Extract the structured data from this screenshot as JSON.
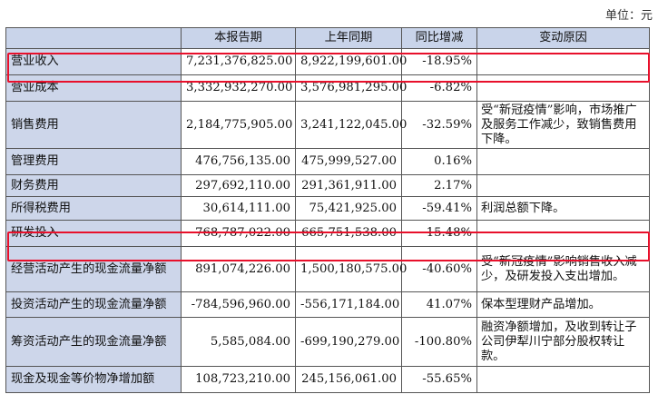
{
  "unit_label": "单位：元",
  "columns": [
    "",
    "本报告期",
    "上年同期",
    "同比增减",
    "变动原因"
  ],
  "rows": [
    {
      "item": "营业收入",
      "current": "7,231,376,825.00",
      "previous": "8,922,199,601.00",
      "change": "-18.95%",
      "reason": ""
    },
    {
      "item": "营业成本",
      "current": "3,332,932,270.00",
      "previous": "3,576,981,295.00",
      "change": "-6.82%",
      "reason": ""
    },
    {
      "item": "销售费用",
      "current": "2,184,775,905.00",
      "previous": "3,241,122,045.00",
      "change": "-32.59%",
      "reason": "受“新冠疫情”影响，市场推广及服务工作减少，致销售费用下降。"
    },
    {
      "item": "管理费用",
      "current": "476,756,135.00",
      "previous": "475,999,527.00",
      "change": "0.16%",
      "reason": ""
    },
    {
      "item": "财务费用",
      "current": "297,692,110.00",
      "previous": "291,361,911.00",
      "change": "2.17%",
      "reason": ""
    },
    {
      "item": "所得税费用",
      "current": "30,614,111.00",
      "previous": "75,421,925.00",
      "change": "-59.41%",
      "reason": "利润总额下降。"
    },
    {
      "item": "研发投入",
      "current": "768,787,022.00",
      "previous": "665,751,538.00",
      "change": "15.48%",
      "reason": ""
    },
    {
      "item": "经营活动产生的现金流量净额",
      "current": "891,074,226.00",
      "previous": "1,500,180,575.00",
      "change": "-40.60%",
      "reason": "受“新冠疫情”影响销售收入减少，及研发投入支出增加。"
    },
    {
      "item": "投资活动产生的现金流量净额",
      "current": "-784,596,960.00",
      "previous": "-556,171,184.00",
      "change": "41.07%",
      "reason": "保本型理财产品增加。"
    },
    {
      "item": "筹资活动产生的现金流量净额",
      "current": "5,585,084.00",
      "previous": "-699,190,279.00",
      "change": "-100.80%",
      "reason": "融资净额增加，及收到转让子公司伊犁川宁部分股权转让款。"
    },
    {
      "item": "现金及现金等价物净增加额",
      "current": "108,723,210.00",
      "previous": "245,156,061.00",
      "change": "-55.65%",
      "reason": ""
    }
  ]
}
